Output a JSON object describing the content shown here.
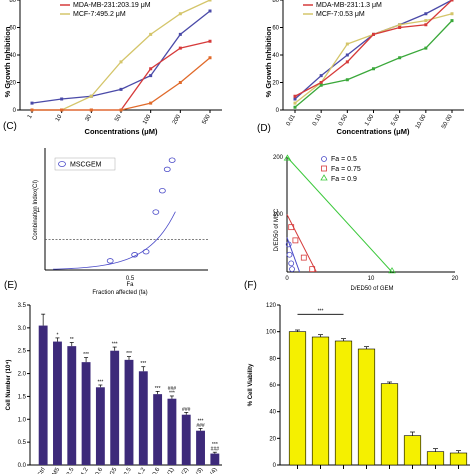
{
  "panel_labels": [
    "(C)",
    "(D)",
    "(E)",
    "(F)"
  ],
  "chart_data": [
    {
      "id": "A",
      "type": "line",
      "ylabel": "% Growth Inhibition",
      "xlabel": "Concentrations (μM)",
      "categories": [
        "1",
        "10",
        "30",
        "50",
        "100",
        "200",
        "500"
      ],
      "ylim": [
        0,
        80
      ],
      "yticks": [
        0,
        20,
        40,
        60,
        80
      ],
      "legend": [
        "MDA-MB-231:203.19 μM",
        "MCF-7:495.2 μM"
      ],
      "series": [
        {
          "color": "#4a4aa8",
          "values": [
            5,
            8,
            10,
            15,
            25,
            55,
            72
          ]
        },
        {
          "color": "#d4c56a",
          "values": [
            0,
            0,
            10,
            35,
            55,
            70,
            80
          ]
        },
        {
          "color": "#d63a3a",
          "values": [
            0,
            0,
            0,
            0,
            30,
            45,
            50
          ]
        },
        {
          "color": "#e06a2a",
          "values": [
            0,
            0,
            0,
            0,
            5,
            20,
            38
          ]
        }
      ]
    },
    {
      "id": "B",
      "type": "line",
      "ylabel": "% Growth Inhibition",
      "xlabel": "Concentrations (μM)",
      "categories": [
        "0.01",
        "0.10",
        "0.50",
        "1.00",
        "5.00",
        "10.00",
        "50.00"
      ],
      "ylim": [
        0,
        80
      ],
      "yticks": [
        0,
        20,
        40,
        60,
        80
      ],
      "legend": [
        "MDA-MB-231:1.3 μM",
        "MCF-7:0.53 μM"
      ],
      "series": [
        {
          "color": "#4a4aa8",
          "values": [
            8,
            25,
            40,
            55,
            62,
            70,
            80
          ]
        },
        {
          "color": "#d4c56a",
          "values": [
            5,
            20,
            48,
            55,
            62,
            65,
            70
          ]
        },
        {
          "color": "#d63a3a",
          "values": [
            10,
            20,
            35,
            55,
            60,
            62,
            80
          ]
        },
        {
          "color": "#3aa83a",
          "values": [
            2,
            18,
            22,
            30,
            38,
            45,
            65
          ]
        }
      ]
    },
    {
      "id": "C",
      "type": "scatter",
      "ylabel": "Combination Index(CI)",
      "xlabel": "Fraction affected (fa)",
      "xtick_labels": [
        "0.5",
        "Fa"
      ],
      "yref_label": "1",
      "legend": [
        "MSCGEM"
      ],
      "points": [
        [
          0.4,
          0.3
        ],
        [
          0.55,
          0.5
        ],
        [
          0.62,
          0.6
        ],
        [
          0.68,
          1.9
        ],
        [
          0.72,
          2.6
        ],
        [
          0.75,
          3.3
        ],
        [
          0.78,
          3.6
        ]
      ],
      "reference_line": 1
    },
    {
      "id": "D",
      "type": "scatter",
      "ylabel": "D/ED50 of MSC",
      "xlabel": "D/ED50 of GEM",
      "xtick_labels": [
        "0",
        "10",
        "20"
      ],
      "ytick_labels": [
        "200",
        "100"
      ],
      "legend": [
        "Fa = 0.5",
        "Fa = 0.75",
        "Fa = 0.9"
      ],
      "series": [
        {
          "name": "Fa = 0.5",
          "color": "#4a4ac8",
          "shape": "circle",
          "line": [
            [
              0,
              60
            ],
            [
              1.5,
              0
            ]
          ],
          "points": [
            [
              0.2,
              48
            ],
            [
              0.3,
              30
            ],
            [
              0.5,
              15
            ],
            [
              0.6,
              5
            ]
          ]
        },
        {
          "name": "Fa = 0.75",
          "color": "#d63a3a",
          "shape": "square",
          "line": [
            [
              0,
              100
            ],
            [
              3.5,
              0
            ]
          ],
          "points": [
            [
              0.5,
              78
            ],
            [
              1,
              55
            ],
            [
              2,
              25
            ],
            [
              3,
              5
            ]
          ]
        },
        {
          "name": "Fa = 0.9",
          "color": "#3ac83a",
          "shape": "triangle",
          "line": [
            [
              0,
              200
            ],
            [
              12.5,
              0
            ]
          ],
          "points": [
            [
              0.05,
              198
            ],
            [
              12.5,
              2
            ]
          ]
        }
      ],
      "xlim": [
        0,
        20
      ],
      "ylim": [
        0,
        200
      ]
    },
    {
      "id": "E",
      "type": "bar",
      "ylabel": "Cell Number (10⁴)",
      "ylim": [
        0,
        3.5
      ],
      "yticks": [
        "0.0",
        "0.5",
        "1.0",
        "1.5",
        "2.0",
        "2.5",
        "3.0",
        "3.5"
      ],
      "color": "#3d2a7a",
      "values": [
        3.05,
        2.7,
        2.6,
        2.25,
        1.7,
        2.5,
        2.3,
        2.05,
        1.55,
        1.45,
        1.1,
        0.75,
        0.25
      ],
      "errors": [
        0.25,
        0.08,
        0.08,
        0.1,
        0.05,
        0.08,
        0.07,
        0.1,
        0.06,
        0.06,
        0.05,
        0.05,
        0.03
      ],
      "stars": [
        "",
        "*",
        "**",
        "***",
        "***",
        "***",
        "***",
        "***",
        "***",
        "***",
        "###",
        "###",
        "###"
      ],
      "stars2": [
        "",
        "",
        "",
        "",
        "",
        "",
        "",
        "",
        "",
        "###",
        "",
        "***",
        "***"
      ],
      "tick_labels": [
        "Ctrl",
        "M5",
        "M2.5",
        "M1.2",
        "M0.6",
        "G5",
        "G2.5",
        "G1.2",
        "G0.6",
        "(1)",
        "(2)",
        "(3)",
        "(4)"
      ]
    },
    {
      "id": "F",
      "type": "bar",
      "ylabel": "% Cell Viability",
      "ylim": [
        0,
        120
      ],
      "yticks": [
        "0",
        "20",
        "40",
        "60",
        "80",
        "100",
        "120"
      ],
      "color": "#f5f000",
      "values": [
        100,
        96,
        93,
        87,
        61,
        22,
        10,
        9
      ],
      "errors": [
        0.5,
        1,
        1,
        1,
        0.5,
        2,
        1.5,
        1
      ],
      "significance": "***",
      "sig_bars": [
        0,
        2
      ]
    }
  ]
}
